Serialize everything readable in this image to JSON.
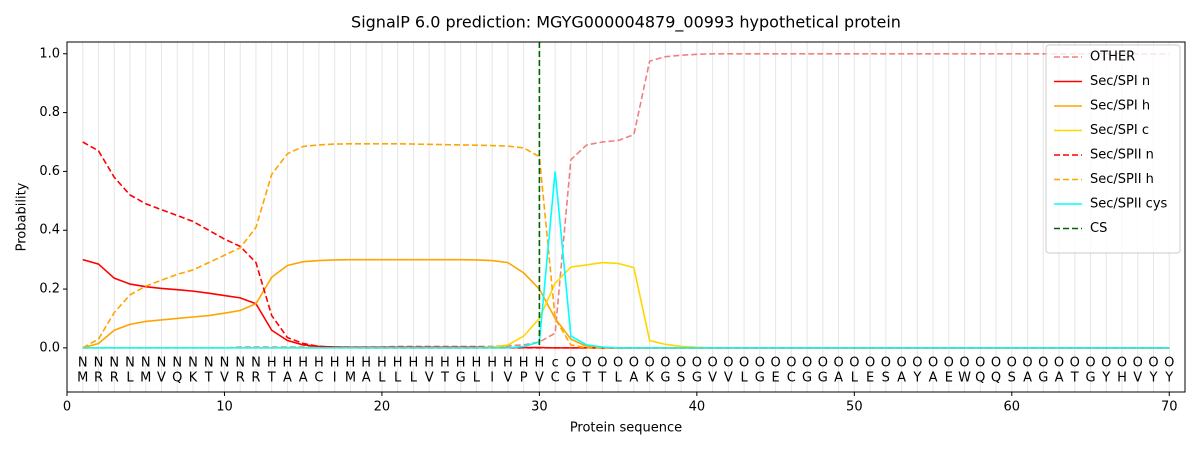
{
  "chart_data": {
    "type": "line",
    "title": "SignalP 6.0 prediction: MGYG000004879_00993 hypothetical protein",
    "x_label": "Protein sequence",
    "y_label": "Probability",
    "xlim": [
      0,
      71
    ],
    "ylim": [
      -0.15,
      1.04
    ],
    "xticks": [
      0,
      10,
      20,
      30,
      40,
      50,
      60,
      70
    ],
    "yticks": [
      {
        "value": 0,
        "label": "0.0"
      },
      {
        "value": 0.2,
        "label": "0.2"
      },
      {
        "value": 0.4,
        "label": "0.4"
      },
      {
        "value": 0.6,
        "label": "0.6"
      },
      {
        "value": 0.8,
        "label": "0.8"
      },
      {
        "value": 1,
        "label": "1.0"
      }
    ],
    "grid": "x",
    "legend_position": "upper right",
    "x": [
      1,
      2,
      3,
      4,
      5,
      6,
      7,
      8,
      9,
      10,
      11,
      12,
      13,
      14,
      15,
      16,
      17,
      18,
      19,
      20,
      21,
      22,
      23,
      24,
      25,
      26,
      27,
      28,
      29,
      30,
      31,
      32,
      33,
      34,
      35,
      36,
      37,
      38,
      39,
      40,
      41,
      42,
      43,
      44,
      45,
      46,
      47,
      48,
      49,
      50,
      51,
      52,
      53,
      54,
      55,
      56,
      57,
      58,
      59,
      60,
      61,
      62,
      63,
      64,
      65,
      66,
      67,
      68,
      69,
      70
    ],
    "residues": [
      "M",
      "R",
      "R",
      "L",
      "M",
      "V",
      "Q",
      "K",
      "T",
      "V",
      "R",
      "R",
      "T",
      "A",
      "A",
      "C",
      "I",
      "M",
      "A",
      "L",
      "L",
      "L",
      "V",
      "T",
      "G",
      "L",
      "I",
      "V",
      "P",
      "V",
      "C",
      "G",
      "T",
      "T",
      "L",
      "A",
      "K",
      "G",
      "S",
      "G",
      "V",
      "V",
      "L",
      "G",
      "E",
      "C",
      "G",
      "G",
      "A",
      "L",
      "E",
      "S",
      "A",
      "Y",
      "A",
      "E",
      "W",
      "Q",
      "Q",
      "S",
      "A",
      "G",
      "A",
      "T",
      "G",
      "Y",
      "H",
      "V",
      "Y",
      "Y"
    ],
    "regions": [
      "N",
      "N",
      "N",
      "N",
      "N",
      "N",
      "N",
      "N",
      "N",
      "N",
      "N",
      "N",
      "H",
      "H",
      "H",
      "H",
      "H",
      "H",
      "H",
      "H",
      "H",
      "H",
      "H",
      "H",
      "H",
      "H",
      "H",
      "H",
      "H",
      "H",
      "c",
      "O",
      "O",
      "O",
      "O",
      "O",
      "O",
      "O",
      "O",
      "O",
      "O",
      "O",
      "O",
      "O",
      "O",
      "O",
      "O",
      "O",
      "O",
      "O",
      "O",
      "O",
      "O",
      "O",
      "O",
      "O",
      "O",
      "O",
      "O",
      "O",
      "O",
      "O",
      "O",
      "O",
      "O",
      "O",
      "O",
      "O",
      "O",
      "O"
    ],
    "region_colors": {
      "N": "#ff0000",
      "H": "#ffa500",
      "c": "#00e5e5",
      "O": "#808080"
    },
    "series": [
      {
        "name": "OTHER",
        "color": "#f08080",
        "linestyle": "dashed",
        "values": [
          0,
          0,
          0,
          0,
          0,
          0,
          0,
          0,
          0,
          0,
          0.003,
          0.003,
          0.003,
          0.003,
          0.003,
          0.003,
          0.003,
          0.003,
          0.003,
          0.003,
          0.005,
          0.005,
          0.005,
          0.005,
          0.005,
          0.005,
          0.005,
          0.008,
          0.01,
          0.02,
          0.05,
          0.64,
          0.69,
          0.7,
          0.705,
          0.725,
          0.975,
          0.99,
          0.995,
          0.998,
          1,
          1,
          1,
          1,
          1,
          1,
          1,
          1,
          1,
          1,
          1,
          1,
          1,
          1,
          1,
          1,
          1,
          1,
          1,
          1,
          1,
          1,
          1,
          1,
          1,
          1,
          1,
          1,
          1,
          1
        ]
      },
      {
        "name": "Sec/SPI n",
        "color": "#ff0000",
        "linestyle": "solid",
        "values": [
          0.3,
          0.285,
          0.237,
          0.217,
          0.208,
          0.202,
          0.198,
          0.193,
          0.186,
          0.178,
          0.17,
          0.15,
          0.06,
          0.025,
          0.01,
          0.005,
          0.003,
          0.002,
          0.002,
          0.002,
          0.002,
          0.002,
          0.002,
          0.002,
          0.002,
          0.002,
          0.001,
          0.001,
          0.001,
          0.001,
          0,
          0,
          0,
          0,
          0,
          0,
          0,
          0,
          0,
          0,
          0,
          0,
          0,
          0,
          0,
          0,
          0,
          0,
          0,
          0,
          0,
          0,
          0,
          0,
          0,
          0,
          0,
          0,
          0,
          0,
          0,
          0,
          0,
          0,
          0,
          0,
          0,
          0,
          0,
          0
        ]
      },
      {
        "name": "Sec/SPI h",
        "color": "#ffa500",
        "linestyle": "solid",
        "values": [
          0,
          0.015,
          0.06,
          0.08,
          0.09,
          0.095,
          0.1,
          0.105,
          0.11,
          0.118,
          0.127,
          0.15,
          0.24,
          0.28,
          0.293,
          0.297,
          0.299,
          0.3,
          0.3,
          0.3,
          0.3,
          0.3,
          0.3,
          0.3,
          0.3,
          0.299,
          0.297,
          0.29,
          0.255,
          0.2,
          0.1,
          0.03,
          0.005,
          0,
          0,
          0,
          0,
          0,
          0,
          0,
          0,
          0,
          0,
          0,
          0,
          0,
          0,
          0,
          0,
          0,
          0,
          0,
          0,
          0,
          0,
          0,
          0,
          0,
          0,
          0,
          0,
          0,
          0,
          0,
          0,
          0,
          0,
          0,
          0,
          0
        ]
      },
      {
        "name": "Sec/SPI c",
        "color": "#ffd700",
        "linestyle": "solid",
        "values": [
          0,
          0,
          0,
          0,
          0,
          0,
          0,
          0,
          0,
          0,
          0,
          0,
          0,
          0,
          0,
          0,
          0,
          0,
          0,
          0,
          0,
          0,
          0,
          0,
          0,
          0,
          0.002,
          0.01,
          0.04,
          0.1,
          0.22,
          0.275,
          0.282,
          0.29,
          0.287,
          0.273,
          0.025,
          0.012,
          0.005,
          0.002,
          0,
          0,
          0,
          0,
          0,
          0,
          0,
          0,
          0,
          0,
          0,
          0,
          0,
          0,
          0,
          0,
          0,
          0,
          0,
          0,
          0,
          0,
          0,
          0,
          0,
          0,
          0,
          0,
          0,
          0
        ]
      },
      {
        "name": "Sec/SPII n",
        "color": "#ff0000",
        "linestyle": "dashed",
        "values": [
          0.7,
          0.67,
          0.58,
          0.52,
          0.49,
          0.47,
          0.45,
          0.43,
          0.4,
          0.37,
          0.345,
          0.29,
          0.11,
          0.035,
          0.015,
          0.005,
          0.002,
          0.001,
          0,
          0,
          0,
          0,
          0,
          0,
          0,
          0,
          0,
          0,
          0,
          0,
          0,
          0,
          0,
          0,
          0,
          0,
          0,
          0,
          0,
          0,
          0,
          0,
          0,
          0,
          0,
          0,
          0,
          0,
          0,
          0,
          0,
          0,
          0,
          0,
          0,
          0,
          0,
          0,
          0,
          0,
          0,
          0,
          0,
          0,
          0,
          0,
          0,
          0,
          0,
          0
        ]
      },
      {
        "name": "Sec/SPII h",
        "color": "#ffa500",
        "linestyle": "dashed",
        "values": [
          0,
          0.03,
          0.12,
          0.18,
          0.21,
          0.23,
          0.25,
          0.265,
          0.29,
          0.315,
          0.34,
          0.41,
          0.59,
          0.66,
          0.685,
          0.69,
          0.693,
          0.694,
          0.694,
          0.694,
          0.694,
          0.693,
          0.692,
          0.691,
          0.69,
          0.689,
          0.688,
          0.686,
          0.68,
          0.65,
          0.1,
          0.01,
          0,
          0,
          0,
          0,
          0,
          0,
          0,
          0,
          0,
          0,
          0,
          0,
          0,
          0,
          0,
          0,
          0,
          0,
          0,
          0,
          0,
          0,
          0,
          0,
          0,
          0,
          0,
          0,
          0,
          0,
          0,
          0,
          0,
          0,
          0,
          0,
          0,
          0
        ]
      },
      {
        "name": "Sec/SPII cys",
        "color": "#00ffff",
        "linestyle": "solid",
        "values": [
          0,
          0,
          0,
          0,
          0,
          0,
          0,
          0,
          0,
          0,
          0,
          0,
          0,
          0,
          0,
          0,
          0,
          0,
          0,
          0,
          0,
          0,
          0,
          0,
          0,
          0,
          0,
          0,
          0.005,
          0.02,
          0.6,
          0.04,
          0.01,
          0.003,
          0,
          0,
          0,
          0,
          0,
          0,
          0,
          0,
          0,
          0,
          0,
          0,
          0,
          0,
          0,
          0,
          0,
          0,
          0,
          0,
          0,
          0,
          0,
          0,
          0,
          0,
          0,
          0,
          0,
          0,
          0,
          0,
          0,
          0,
          0,
          0
        ]
      }
    ],
    "vlines": [
      {
        "name": "CS",
        "x": 30,
        "color": "#006400",
        "linestyle": "dashed"
      }
    ]
  }
}
